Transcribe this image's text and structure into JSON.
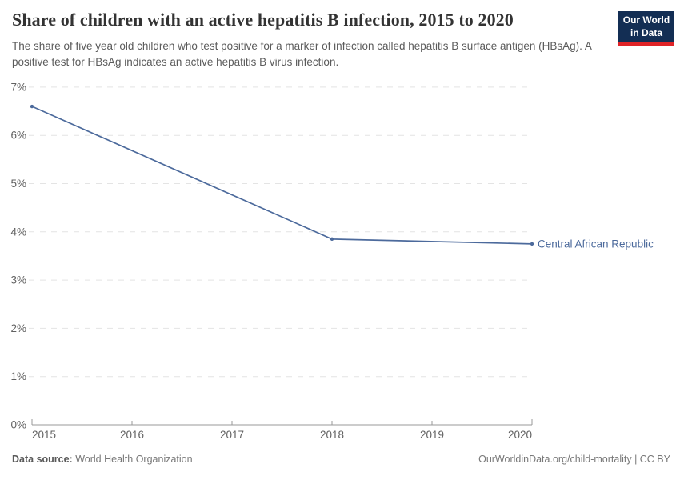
{
  "header": {
    "title": "Share of children with an active hepatitis B infection, 2015 to 2020",
    "subtitle": "The share of five year old children who test positive for a marker of infection called hepatitis B surface antigen (HBsAg). A positive test for HBsAg indicates an active hepatitis B virus infection.",
    "logo": {
      "line1": "Our World",
      "line2": "in Data",
      "bg_color": "#132e54",
      "stripe_color": "#e02327"
    }
  },
  "chart_data": {
    "type": "line",
    "title": "Share of children with an active hepatitis B infection, 2015 to 2020",
    "xlabel": "",
    "ylabel": "",
    "xlim": [
      2015,
      2020
    ],
    "ylim": [
      0,
      7
    ],
    "x_ticks": [
      "2015",
      "2016",
      "2017",
      "2018",
      "2019",
      "2020"
    ],
    "y_ticks": [
      0,
      1,
      2,
      3,
      4,
      5,
      6,
      7
    ],
    "y_tick_suffix": "%",
    "grid": "horizontal-dashed",
    "legend_position": "end-of-line-label",
    "series": [
      {
        "name": "Central African Republic",
        "color": "#4c6a9c",
        "points": [
          {
            "x": 2015,
            "y": 6.6
          },
          {
            "x": 2018,
            "y": 3.85
          },
          {
            "x": 2020,
            "y": 3.75
          }
        ]
      }
    ]
  },
  "footer": {
    "datasource_label": "Data source:",
    "datasource_value": "World Health Organization",
    "license": "OurWorldinData.org/child-mortality | CC BY"
  }
}
